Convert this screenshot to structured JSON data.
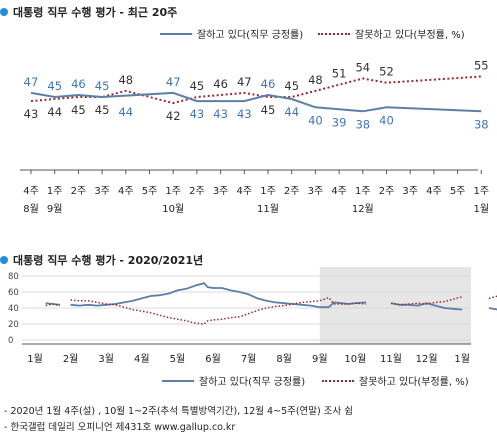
{
  "top": {
    "title": "대통령 직무 수행 평가 - 최근 20주",
    "legend": {
      "approve": "잘하고 있다(직무 긍정률)",
      "disapprove": "잘못하고 있다(부정률, %)"
    }
  },
  "bottom": {
    "title": "대통령 직무 수행 평가 - 2020/2021년",
    "legend": {
      "approve": "잘하고 있다(직무 긍정률)",
      "disapprove": "잘못하고 있다(부정률, %)"
    }
  },
  "footnotes": [
    "- 2020년 1월 4주(설) , 10월 1~2주(추석 특별방역기간), 12월 4~5주(연말) 조사 쉼",
    "- 한국갤럽 데일리 오피니언 제431호 www.gallup.co.kr"
  ],
  "colors": {
    "approve": "#5b7fa6",
    "disapprove": "#a0282c",
    "accent": "#1f8fd6",
    "approve_label": "#3f75b8",
    "shade": "#e6e6e6"
  },
  "chart_data": [
    {
      "type": "line",
      "title": "대통령 직무 수행 평가 - 최근 20주",
      "categories": [
        "4주",
        "1주",
        "2주",
        "3주",
        "4주",
        "5주",
        "1주",
        "2주",
        "3주",
        "4주",
        "1주",
        "2주",
        "3주",
        "4주",
        "1주",
        "2주",
        "3주",
        "4주",
        "5주",
        "1주"
      ],
      "month_labels": [
        {
          "index": 0,
          "label": "8월"
        },
        {
          "index": 1,
          "label": "9월"
        },
        {
          "index": 6,
          "label": "10월"
        },
        {
          "index": 10,
          "label": "11월"
        },
        {
          "index": 14,
          "label": "12월"
        },
        {
          "index": 19,
          "label": "1월"
        }
      ],
      "series": [
        {
          "name": "잘하고 있다(직무 긍정률)",
          "values": [
            47,
            45,
            46,
            45,
            null,
            null,
            47,
            43,
            43,
            43,
            46,
            44,
            40,
            39,
            38,
            40,
            null,
            null,
            null,
            38
          ],
          "label_pos": [
            "a",
            "a",
            "a",
            "a",
            null,
            null,
            "a",
            "b",
            "b",
            "b",
            "a",
            "b",
            "b",
            "b",
            "b",
            "b",
            null,
            null,
            null,
            "b"
          ]
        },
        {
          "name": "잘못하고 있다(부정률, %)",
          "values": [
            43,
            44,
            45,
            45,
            48,
            null,
            42,
            45,
            46,
            47,
            45,
            45,
            48,
            51,
            54,
            52,
            null,
            null,
            null,
            55
          ],
          "label_pos": [
            "b",
            "b",
            "b",
            "b",
            "a",
            null,
            "b",
            "a",
            "a",
            "a",
            "b",
            "a",
            "a",
            "a",
            "a",
            "a",
            null,
            null,
            null,
            "a"
          ]
        },
        {
          "name": "",
          "values": [
            null,
            null,
            null,
            null,
            44,
            null,
            null,
            null,
            null,
            null,
            null,
            null,
            null,
            null,
            null,
            null,
            null,
            null,
            null,
            null
          ],
          "label_pos": [
            null,
            null,
            null,
            null,
            "b",
            null,
            null,
            null,
            null,
            null,
            null,
            null,
            null,
            null,
            null,
            null,
            null,
            null,
            null,
            null
          ],
          "label_only": true
        }
      ]
    },
    {
      "type": "line",
      "title": "대통령 직무 수행 평가 - 2020/2021년",
      "ylim": [
        0,
        80
      ],
      "yticks": [
        0,
        20,
        40,
        60,
        80
      ],
      "xticks": [
        "1월",
        "2월",
        "3월",
        "4월",
        "5월",
        "6월",
        "7월",
        "8월",
        "9월",
        "10월",
        "11월",
        "12월",
        "1월"
      ],
      "shaded_from_month_index": 8.0,
      "series": [
        {
          "name": "잘하고 있다(직무 긍정률)",
          "segments": [
            [
              [
                0.3,
                46
              ],
              [
                0.5,
                45
              ],
              [
                0.7,
                44
              ]
            ],
            [
              [
                1.0,
                44
              ],
              [
                1.25,
                43
              ],
              [
                1.5,
                44
              ],
              [
                1.75,
                43
              ],
              [
                2.0,
                44
              ],
              [
                2.25,
                45
              ],
              [
                2.5,
                47
              ],
              [
                2.75,
                49
              ],
              [
                3.0,
                52
              ],
              [
                3.25,
                55
              ],
              [
                3.5,
                56
              ],
              [
                3.75,
                58
              ],
              [
                4.0,
                62
              ],
              [
                4.25,
                64
              ],
              [
                4.5,
                68
              ],
              [
                4.75,
                71
              ],
              [
                4.85,
                66
              ],
              [
                5.0,
                65
              ],
              [
                5.25,
                65
              ],
              [
                5.5,
                62
              ],
              [
                5.75,
                60
              ],
              [
                6.0,
                57
              ],
              [
                6.25,
                52
              ],
              [
                6.5,
                49
              ],
              [
                6.75,
                47
              ],
              [
                7.0,
                46
              ],
              [
                7.25,
                45
              ],
              [
                7.5,
                44
              ],
              [
                7.75,
                43
              ],
              [
                8.0,
                41
              ],
              [
                8.25,
                41
              ],
              [
                8.4,
                47
              ],
              [
                8.6,
                46
              ],
              [
                8.8,
                45
              ],
              [
                9.0,
                46
              ],
              [
                9.3,
                47
              ]
            ],
            [
              [
                10.0,
                46
              ],
              [
                10.25,
                44
              ],
              [
                10.5,
                44
              ],
              [
                10.75,
                43
              ],
              [
                11.0,
                46
              ],
              [
                11.25,
                43
              ],
              [
                11.5,
                40
              ],
              [
                11.75,
                39
              ],
              [
                12.0,
                38
              ]
            ],
            [
              [
                12.75,
                40
              ],
              [
                13.0,
                38
              ]
            ]
          ]
        },
        {
          "name": "잘못하고 있다(부정률, %)",
          "segments": [
            [
              [
                0.3,
                43
              ],
              [
                0.5,
                45
              ],
              [
                0.7,
                43
              ]
            ],
            [
              [
                1.0,
                50
              ],
              [
                1.25,
                49
              ],
              [
                1.5,
                49
              ],
              [
                1.75,
                47
              ],
              [
                2.0,
                45
              ],
              [
                2.25,
                44
              ],
              [
                2.5,
                41
              ],
              [
                2.75,
                38
              ],
              [
                3.0,
                36
              ],
              [
                3.25,
                34
              ],
              [
                3.5,
                31
              ],
              [
                3.75,
                28
              ],
              [
                4.0,
                26
              ],
              [
                4.25,
                24
              ],
              [
                4.5,
                21
              ],
              [
                4.75,
                20
              ],
              [
                4.85,
                24
              ],
              [
                5.0,
                25
              ],
              [
                5.25,
                26
              ],
              [
                5.5,
                28
              ],
              [
                5.75,
                29
              ],
              [
                6.0,
                33
              ],
              [
                6.25,
                37
              ],
              [
                6.5,
                40
              ],
              [
                6.75,
                42
              ],
              [
                7.0,
                43
              ],
              [
                7.25,
                45
              ],
              [
                7.5,
                47
              ],
              [
                7.75,
                48
              ],
              [
                8.0,
                49
              ],
              [
                8.25,
                53
              ],
              [
                8.4,
                45
              ],
              [
                8.6,
                45
              ],
              [
                8.8,
                45
              ],
              [
                9.0,
                46
              ],
              [
                9.3,
                45
              ]
            ],
            [
              [
                10.0,
                46
              ],
              [
                10.25,
                44
              ],
              [
                10.5,
                45
              ],
              [
                10.75,
                46
              ],
              [
                11.0,
                45
              ],
              [
                11.25,
                47
              ],
              [
                11.5,
                48
              ],
              [
                11.75,
                51
              ],
              [
                12.0,
                54
              ]
            ],
            [
              [
                12.75,
                52
              ],
              [
                13.0,
                55
              ]
            ]
          ]
        }
      ]
    }
  ]
}
